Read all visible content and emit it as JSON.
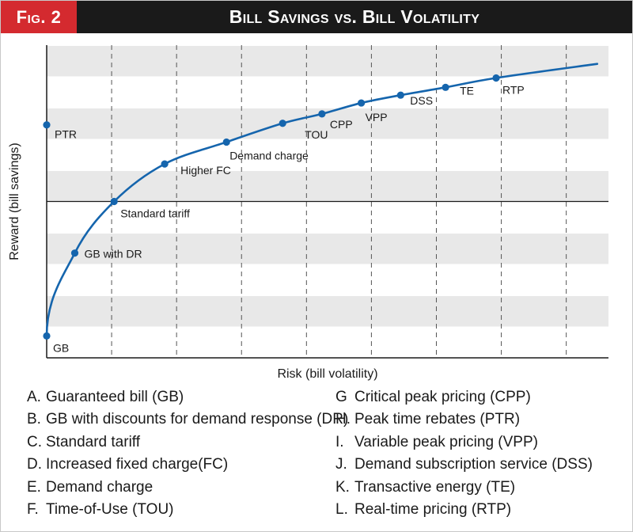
{
  "figure": {
    "tag": "Fig. 2",
    "title": "Bill Savings vs. Bill Volatility"
  },
  "colors": {
    "header_bg": "#1a1a1a",
    "tag_bg": "#d42a2f",
    "curve": "#1565ad",
    "band": "#e8e8e8"
  },
  "chart_data": {
    "type": "scatter",
    "title": "Bill Savings vs. Bill Volatility",
    "xlabel": "Risk (bill volatility)",
    "ylabel": "Reward (bill savings)",
    "xlim": [
      0,
      100
    ],
    "ylim": [
      -100,
      100
    ],
    "grid": true,
    "points": [
      {
        "label": "GB",
        "x": 0,
        "y": -86
      },
      {
        "label": "GB with DR",
        "x": 5,
        "y": -33
      },
      {
        "label": "Standard tariff",
        "x": 12,
        "y": 0
      },
      {
        "label": "Higher FC",
        "x": 21,
        "y": 24
      },
      {
        "label": "Demand charge",
        "x": 32,
        "y": 38
      },
      {
        "label": "TOU",
        "x": 42,
        "y": 50
      },
      {
        "label": "CPP",
        "x": 49,
        "y": 56
      },
      {
        "label": "VPP",
        "x": 56,
        "y": 63
      },
      {
        "label": "DSS",
        "x": 63,
        "y": 68
      },
      {
        "label": "TE",
        "x": 71,
        "y": 73
      },
      {
        "label": "RTP",
        "x": 80,
        "y": 79
      },
      {
        "label": "PTR",
        "x": 0,
        "y": 49
      }
    ],
    "curve_end": {
      "x": 98,
      "y": 88
    }
  },
  "legend": {
    "left": [
      {
        "letter": "A.",
        "text": "Guaranteed bill (GB)"
      },
      {
        "letter": "B.",
        "text": "GB with discounts for demand response (DR)"
      },
      {
        "letter": "C.",
        "text": "Standard tariff"
      },
      {
        "letter": "D.",
        "text": "Increased fixed charge(FC)"
      },
      {
        "letter": "E.",
        "text": "Demand charge"
      },
      {
        "letter": "F.",
        "text": "Time-of-Use (TOU)"
      }
    ],
    "right": [
      {
        "letter": "G",
        "text": "Critical peak pricing (CPP)"
      },
      {
        "letter": "H.",
        "text": "Peak time rebates (PTR)"
      },
      {
        "letter": "I.",
        "text": "Variable peak pricing (VPP)"
      },
      {
        "letter": "J.",
        "text": "Demand subscription service (DSS)"
      },
      {
        "letter": "K.",
        "text": "Transactive energy (TE)"
      },
      {
        "letter": "L.",
        "text": "Real-time pricing (RTP)"
      }
    ]
  }
}
